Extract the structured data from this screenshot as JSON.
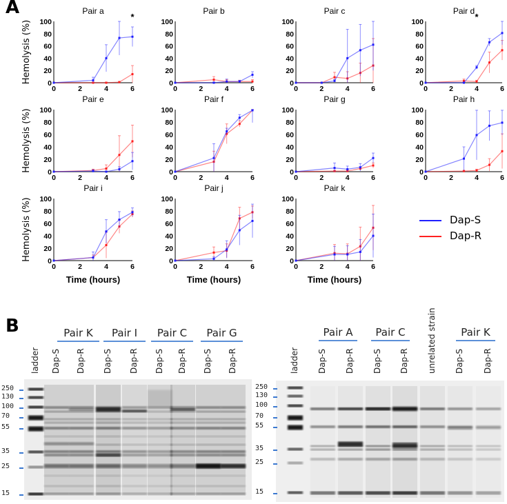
{
  "panel_a_label": "A",
  "panel_b_label": "B",
  "legend": [
    {
      "label": "Dap-S",
      "color": "#1f1fff"
    },
    {
      "label": "Dap-R",
      "color": "#ff2020"
    }
  ],
  "chart_data": [
    {
      "type": "line",
      "title": "Pair a",
      "ylabel": "Hemolysis (%)",
      "xlabel": "",
      "xlim": [
        0,
        6
      ],
      "ylim": [
        0,
        100
      ],
      "xticks": [
        0,
        2,
        4,
        6
      ],
      "yticks": [
        0,
        20,
        40,
        60,
        80,
        100
      ],
      "x": [
        0,
        3,
        4,
        5,
        6
      ],
      "series": [
        {
          "name": "Dap-S",
          "values": [
            0,
            4,
            40,
            73,
            75
          ],
          "error": [
            0,
            5,
            22,
            28,
            16
          ]
        },
        {
          "name": "Dap-R",
          "values": [
            0,
            0,
            0,
            1,
            14
          ],
          "error": [
            0,
            1,
            1,
            1,
            14
          ]
        }
      ],
      "significance": [
        {
          "x": 6,
          "label": "*"
        }
      ]
    },
    {
      "type": "line",
      "title": "Pair b",
      "ylabel": "",
      "xlabel": "",
      "xlim": [
        0,
        6
      ],
      "ylim": [
        0,
        100
      ],
      "xticks": [
        0,
        2,
        4,
        6
      ],
      "yticks": [
        0,
        20,
        40,
        60,
        80,
        100
      ],
      "x": [
        0,
        3,
        4,
        5,
        6
      ],
      "series": [
        {
          "name": "Dap-S",
          "values": [
            0,
            0,
            2,
            2,
            13
          ],
          "error": [
            0,
            1,
            4,
            2,
            5
          ]
        },
        {
          "name": "Dap-R",
          "values": [
            0,
            5,
            2,
            2,
            2
          ],
          "error": [
            0,
            5,
            3,
            2,
            3
          ]
        }
      ]
    },
    {
      "type": "line",
      "title": "Pair c",
      "ylabel": "",
      "xlabel": "",
      "xlim": [
        0,
        6
      ],
      "ylim": [
        0,
        100
      ],
      "xticks": [
        0,
        2,
        4,
        6
      ],
      "yticks": [
        0,
        20,
        40,
        60,
        80,
        100
      ],
      "x": [
        0,
        2,
        3,
        4,
        5,
        6
      ],
      "series": [
        {
          "name": "Dap-S",
          "values": [
            0,
            0,
            3,
            40,
            53,
            62
          ],
          "error": [
            0,
            0,
            2,
            47,
            42,
            42
          ]
        },
        {
          "name": "Dap-R",
          "values": [
            0,
            0,
            9,
            7,
            16,
            28
          ],
          "error": [
            0,
            0,
            8,
            11,
            16,
            44
          ]
        }
      ]
    },
    {
      "type": "line",
      "title": "Pair d",
      "ylabel": "",
      "xlabel": "",
      "xlim": [
        0,
        6
      ],
      "ylim": [
        0,
        100
      ],
      "xticks": [
        0,
        2,
        4,
        6
      ],
      "yticks": [
        0,
        20,
        40,
        60,
        80,
        100
      ],
      "x": [
        0,
        3,
        4,
        5,
        6
      ],
      "series": [
        {
          "name": "Dap-S",
          "values": [
            0,
            0,
            25,
            66,
            81
          ],
          "error": [
            0,
            1,
            3,
            6,
            19
          ]
        },
        {
          "name": "Dap-R",
          "values": [
            0,
            3,
            2,
            33,
            53
          ],
          "error": [
            0,
            3,
            2,
            17,
            16
          ]
        }
      ],
      "significance": [
        {
          "x": 4,
          "label": "*"
        }
      ]
    },
    {
      "type": "line",
      "title": "Pair e",
      "ylabel": "Hemolysis (%)",
      "xlabel": "",
      "xlim": [
        0,
        6
      ],
      "ylim": [
        0,
        100
      ],
      "xticks": [
        0,
        2,
        4,
        6
      ],
      "yticks": [
        0,
        20,
        40,
        60,
        80,
        100
      ],
      "x": [
        0,
        3,
        4,
        5,
        6
      ],
      "series": [
        {
          "name": "Dap-S",
          "values": [
            0,
            1,
            0,
            4,
            17
          ],
          "error": [
            0,
            2,
            1,
            4,
            14
          ]
        },
        {
          "name": "Dap-R",
          "values": [
            0,
            2,
            5,
            27,
            49
          ],
          "error": [
            0,
            2,
            6,
            31,
            26
          ]
        }
      ]
    },
    {
      "type": "line",
      "title": "Pair f",
      "ylabel": "",
      "xlabel": "",
      "xlim": [
        0,
        6
      ],
      "ylim": [
        0,
        100
      ],
      "xticks": [
        0,
        2,
        4,
        6
      ],
      "yticks": [
        0,
        20,
        40,
        60,
        80,
        100
      ],
      "x": [
        0,
        3,
        4,
        5,
        6
      ],
      "series": [
        {
          "name": "Dap-S",
          "values": [
            0,
            22,
            65,
            87,
            99
          ],
          "error": [
            0,
            23,
            5,
            5,
            20
          ]
        },
        {
          "name": "Dap-R",
          "values": [
            0,
            16,
            61,
            77,
            99
          ],
          "error": [
            0,
            17,
            16,
            5,
            1
          ]
        }
      ]
    },
    {
      "type": "line",
      "title": "Pair g",
      "ylabel": "",
      "xlabel": "",
      "xlim": [
        0,
        6
      ],
      "ylim": [
        0,
        100
      ],
      "xticks": [
        0,
        2,
        4,
        6
      ],
      "yticks": [
        0,
        20,
        40,
        60,
        80,
        100
      ],
      "x": [
        0,
        3,
        4,
        5,
        6
      ],
      "series": [
        {
          "name": "Dap-S",
          "values": [
            0,
            6,
            4,
            7,
            22
          ],
          "error": [
            0,
            8,
            5,
            6,
            8
          ]
        },
        {
          "name": "Dap-R",
          "values": [
            0,
            1,
            1,
            5,
            10
          ],
          "error": [
            0,
            1,
            2,
            3,
            4
          ]
        }
      ]
    },
    {
      "type": "line",
      "title": "Pair h",
      "ylabel": "",
      "xlabel": "",
      "xlim": [
        0,
        6
      ],
      "ylim": [
        0,
        100
      ],
      "xticks": [
        0,
        2,
        4,
        6
      ],
      "yticks": [
        0,
        20,
        40,
        60,
        80,
        100
      ],
      "x": [
        0,
        3,
        4,
        5,
        6
      ],
      "series": [
        {
          "name": "Dap-S",
          "values": [
            0,
            21,
            59,
            74,
            79
          ],
          "error": [
            0,
            19,
            40,
            24,
            20
          ]
        },
        {
          "name": "Dap-R",
          "values": [
            0,
            1,
            2,
            11,
            33
          ],
          "error": [
            0,
            1,
            2,
            10,
            28
          ]
        }
      ]
    },
    {
      "type": "line",
      "title": "Pair i",
      "ylabel": "Hemolysis (%)",
      "xlabel": "Time  (hours)",
      "xlim": [
        0,
        6
      ],
      "ylim": [
        0,
        100
      ],
      "xticks": [
        0,
        2,
        4,
        6
      ],
      "yticks": [
        0,
        20,
        40,
        60,
        80,
        100
      ],
      "x": [
        0,
        3,
        4,
        5,
        6
      ],
      "series": [
        {
          "name": "Dap-S",
          "values": [
            0,
            5,
            47,
            66,
            78
          ],
          "error": [
            0,
            9,
            19,
            13,
            7
          ]
        },
        {
          "name": "Dap-R",
          "values": [
            0,
            5,
            25,
            55,
            75
          ],
          "error": [
            0,
            4,
            21,
            11,
            5
          ]
        }
      ]
    },
    {
      "type": "line",
      "title": "Pair j",
      "ylabel": "",
      "xlabel": "Time  (hours)",
      "xlim": [
        0,
        6
      ],
      "ylim": [
        0,
        100
      ],
      "xticks": [
        0,
        2,
        4,
        6
      ],
      "yticks": [
        0,
        20,
        40,
        60,
        80,
        100
      ],
      "x": [
        0,
        3,
        4,
        5,
        6
      ],
      "series": [
        {
          "name": "Dap-S",
          "values": [
            0,
            3,
            18,
            49,
            64
          ],
          "error": [
            0,
            3,
            14,
            24,
            27
          ]
        },
        {
          "name": "Dap-R",
          "values": [
            0,
            13,
            16,
            68,
            78
          ],
          "error": [
            0,
            9,
            11,
            18,
            10
          ]
        }
      ]
    },
    {
      "type": "line",
      "title": "Pair k",
      "ylabel": "",
      "xlabel": "Time  (hours)",
      "xlim": [
        0,
        6
      ],
      "ylim": [
        0,
        100
      ],
      "xticks": [
        0,
        2,
        4,
        6
      ],
      "yticks": [
        0,
        20,
        40,
        60,
        80,
        100
      ],
      "x": [
        0,
        3,
        4,
        5,
        6
      ],
      "series": [
        {
          "name": "Dap-S",
          "values": [
            0,
            10,
            10,
            14,
            40
          ],
          "error": [
            0,
            13,
            14,
            20,
            35
          ]
        },
        {
          "name": "Dap-R",
          "values": [
            0,
            12,
            11,
            23,
            53
          ],
          "error": [
            0,
            14,
            16,
            31,
            36
          ]
        }
      ]
    }
  ],
  "gels": {
    "left": {
      "pairs": [
        "Pair K",
        "Pair I",
        "Pair C",
        "Pair G"
      ],
      "lanes": [
        "ladder",
        "Dap-S",
        "Dap-R",
        "Dap-S",
        "Dap-R",
        "Dap-S",
        "Dap-R",
        "Dap-S",
        "Dap-R"
      ],
      "markers": [
        "250",
        "130",
        "100",
        "70",
        "55",
        "35",
        "25",
        "15"
      ]
    },
    "right": {
      "pairs": [
        "Pair A",
        "Pair C",
        "Pair K"
      ],
      "lanes": [
        "ladder",
        "Dap-S",
        "Dap-R",
        "Dap-S",
        "Dap-R",
        "unrelated strain",
        "Dap-S",
        "Dap-R"
      ],
      "markers": [
        "250",
        "130",
        "100",
        "70",
        "55",
        "35",
        "25",
        "15"
      ]
    }
  }
}
